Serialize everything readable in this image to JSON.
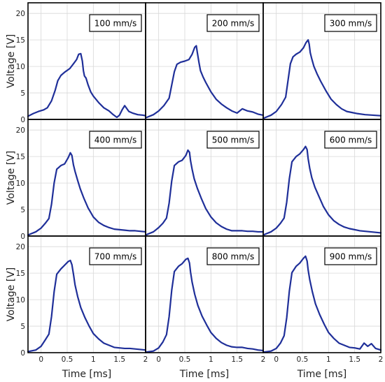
{
  "chart_data": {
    "type": "line",
    "layout": "3x3 small multiples",
    "xlabel": "Time [ms]",
    "ylabel": "Voltage [V]",
    "xlim": [
      -0.25,
      2.0
    ],
    "ylim": [
      0,
      22
    ],
    "xticks": [
      0,
      0.5,
      1,
      1.5,
      2
    ],
    "xtick_labels": [
      "0",
      "0.5",
      "1",
      "1.5",
      "2"
    ],
    "yticks": [
      0,
      5,
      10,
      15,
      20
    ],
    "ytick_labels": [
      "0",
      "5",
      "10",
      "15",
      "20"
    ],
    "grid": true,
    "line_color": "#1f2f99",
    "legend_placement": "top-right",
    "panels": [
      {
        "label": "100 mm/s",
        "x": [
          -0.25,
          -0.15,
          -0.05,
          0.05,
          0.12,
          0.2,
          0.27,
          0.32,
          0.38,
          0.45,
          0.55,
          0.62,
          0.68,
          0.72,
          0.76,
          0.79,
          0.81,
          0.83,
          0.86,
          0.9,
          0.95,
          1.0,
          1.1,
          1.2,
          1.3,
          1.38,
          1.45,
          1.5,
          1.55,
          1.6,
          1.68,
          1.75,
          1.85,
          1.95,
          2.0
        ],
        "y": [
          0.6,
          1.1,
          1.5,
          1.8,
          2.2,
          3.5,
          5.5,
          7.3,
          8.3,
          8.9,
          9.6,
          10.5,
          11.3,
          12.3,
          12.4,
          11.0,
          9.2,
          8.2,
          7.8,
          6.5,
          5.2,
          4.4,
          3.2,
          2.2,
          1.6,
          0.9,
          0.4,
          0.8,
          1.8,
          2.6,
          1.5,
          1.2,
          0.9,
          0.8,
          0.7
        ]
      },
      {
        "label": "200 mm/s",
        "x": [
          -0.25,
          -0.1,
          0.0,
          0.1,
          0.2,
          0.25,
          0.3,
          0.35,
          0.42,
          0.5,
          0.58,
          0.64,
          0.69,
          0.72,
          0.74,
          0.77,
          0.8,
          0.85,
          0.9,
          1.0,
          1.1,
          1.2,
          1.3,
          1.4,
          1.5,
          1.6,
          1.7,
          1.8,
          1.9,
          2.0
        ],
        "y": [
          0.3,
          0.9,
          1.6,
          2.6,
          4.0,
          6.5,
          9.0,
          10.4,
          10.8,
          11.0,
          11.3,
          12.3,
          13.6,
          13.9,
          12.6,
          10.8,
          9.2,
          8.0,
          7.0,
          5.2,
          3.8,
          2.9,
          2.2,
          1.6,
          1.2,
          2.0,
          1.6,
          1.4,
          1.0,
          0.8
        ]
      },
      {
        "label": "300 mm/s",
        "x": [
          -0.25,
          -0.1,
          0.0,
          0.1,
          0.18,
          0.22,
          0.27,
          0.32,
          0.38,
          0.45,
          0.52,
          0.57,
          0.61,
          0.63,
          0.65,
          0.68,
          0.72,
          0.78,
          0.85,
          0.95,
          1.05,
          1.15,
          1.25,
          1.35,
          1.45,
          1.55,
          1.7,
          1.85,
          2.0
        ],
        "y": [
          0.2,
          0.8,
          1.5,
          2.8,
          4.2,
          7.0,
          10.5,
          11.8,
          12.3,
          12.7,
          13.5,
          14.5,
          15.0,
          14.2,
          12.6,
          11.4,
          10.0,
          8.6,
          7.2,
          5.4,
          3.8,
          2.8,
          2.0,
          1.5,
          1.3,
          1.1,
          0.9,
          0.8,
          0.7
        ]
      },
      {
        "label": "400 mm/s",
        "x": [
          -0.25,
          -0.1,
          0.0,
          0.08,
          0.15,
          0.2,
          0.25,
          0.3,
          0.38,
          0.45,
          0.52,
          0.56,
          0.59,
          0.62,
          0.65,
          0.7,
          0.75,
          0.82,
          0.9,
          1.0,
          1.1,
          1.2,
          1.3,
          1.4,
          1.5,
          1.6,
          1.7,
          1.8,
          1.9,
          2.0
        ],
        "y": [
          0.2,
          0.8,
          1.5,
          2.4,
          3.3,
          6.0,
          10.0,
          12.6,
          13.3,
          13.6,
          14.8,
          15.7,
          15.2,
          13.4,
          12.2,
          10.5,
          8.9,
          7.1,
          5.3,
          3.6,
          2.6,
          2.0,
          1.6,
          1.3,
          1.2,
          1.1,
          1.0,
          1.0,
          0.9,
          0.8
        ]
      },
      {
        "label": "500 mm/s",
        "x": [
          -0.25,
          -0.1,
          0.0,
          0.08,
          0.15,
          0.2,
          0.25,
          0.3,
          0.38,
          0.45,
          0.52,
          0.56,
          0.59,
          0.61,
          0.64,
          0.68,
          0.74,
          0.82,
          0.9,
          1.0,
          1.1,
          1.2,
          1.3,
          1.4,
          1.5,
          1.6,
          1.7,
          1.8,
          1.9,
          2.0
        ],
        "y": [
          0.2,
          0.8,
          1.6,
          2.4,
          3.4,
          6.2,
          10.4,
          13.3,
          14.0,
          14.3,
          15.2,
          16.2,
          15.8,
          14.2,
          12.6,
          10.8,
          9.0,
          7.0,
          5.2,
          3.6,
          2.5,
          1.8,
          1.3,
          1.0,
          1.0,
          1.0,
          0.9,
          0.9,
          0.8,
          0.8
        ]
      },
      {
        "label": "600 mm/s",
        "x": [
          -0.25,
          -0.1,
          0.0,
          0.08,
          0.15,
          0.2,
          0.25,
          0.3,
          0.38,
          0.45,
          0.52,
          0.56,
          0.59,
          0.61,
          0.64,
          0.68,
          0.74,
          0.82,
          0.9,
          1.0,
          1.1,
          1.2,
          1.3,
          1.4,
          1.5,
          1.6,
          1.7,
          1.8,
          1.9,
          2.0
        ],
        "y": [
          0.2,
          0.8,
          1.5,
          2.4,
          3.4,
          6.4,
          10.8,
          14.0,
          15.0,
          15.5,
          16.3,
          16.9,
          16.3,
          14.6,
          12.8,
          11.0,
          9.2,
          7.4,
          5.6,
          4.0,
          2.9,
          2.2,
          1.7,
          1.4,
          1.2,
          1.0,
          0.9,
          0.8,
          0.7,
          0.6
        ]
      },
      {
        "label": "700 mm/s",
        "x": [
          -0.25,
          -0.1,
          0.0,
          0.08,
          0.15,
          0.2,
          0.25,
          0.3,
          0.38,
          0.45,
          0.52,
          0.56,
          0.59,
          0.62,
          0.65,
          0.7,
          0.76,
          0.84,
          0.92,
          1.0,
          1.1,
          1.2,
          1.3,
          1.4,
          1.5,
          1.6,
          1.7,
          1.8,
          1.9,
          2.0
        ],
        "y": [
          0.2,
          0.5,
          1.2,
          2.4,
          3.5,
          6.8,
          11.5,
          14.8,
          15.8,
          16.5,
          17.2,
          17.4,
          16.6,
          14.8,
          12.8,
          10.6,
          8.5,
          6.6,
          5.0,
          3.6,
          2.6,
          1.8,
          1.4,
          1.0,
          0.9,
          0.8,
          0.8,
          0.7,
          0.6,
          0.5
        ]
      },
      {
        "label": "800 mm/s",
        "x": [
          -0.25,
          -0.1,
          0.0,
          0.08,
          0.15,
          0.2,
          0.25,
          0.3,
          0.38,
          0.45,
          0.52,
          0.56,
          0.59,
          0.61,
          0.64,
          0.69,
          0.75,
          0.83,
          0.92,
          1.0,
          1.1,
          1.2,
          1.3,
          1.4,
          1.5,
          1.6,
          1.7,
          1.8,
          1.9,
          2.0
        ],
        "y": [
          0.1,
          0.3,
          0.9,
          2.0,
          3.4,
          6.8,
          11.8,
          15.3,
          16.3,
          16.8,
          17.6,
          17.8,
          16.9,
          15.2,
          13.3,
          11.0,
          8.9,
          6.9,
          5.2,
          3.8,
          2.7,
          1.9,
          1.4,
          1.1,
          1.0,
          1.0,
          0.8,
          0.7,
          0.5,
          0.4
        ]
      },
      {
        "label": "900 mm/s",
        "x": [
          -0.25,
          -0.1,
          0.0,
          0.08,
          0.15,
          0.2,
          0.25,
          0.3,
          0.38,
          0.45,
          0.52,
          0.56,
          0.59,
          0.61,
          0.64,
          0.69,
          0.75,
          0.83,
          0.92,
          1.0,
          1.1,
          1.2,
          1.3,
          1.4,
          1.5,
          1.6,
          1.68,
          1.75,
          1.82,
          1.9,
          2.0
        ],
        "y": [
          0.1,
          0.3,
          0.8,
          1.8,
          3.2,
          6.6,
          11.6,
          15.1,
          16.3,
          16.9,
          17.8,
          18.2,
          17.3,
          15.6,
          13.8,
          11.5,
          9.2,
          7.2,
          5.3,
          3.8,
          2.7,
          1.8,
          1.4,
          1.0,
          0.9,
          0.7,
          1.8,
          1.2,
          1.7,
          0.8,
          0.5
        ]
      }
    ]
  }
}
